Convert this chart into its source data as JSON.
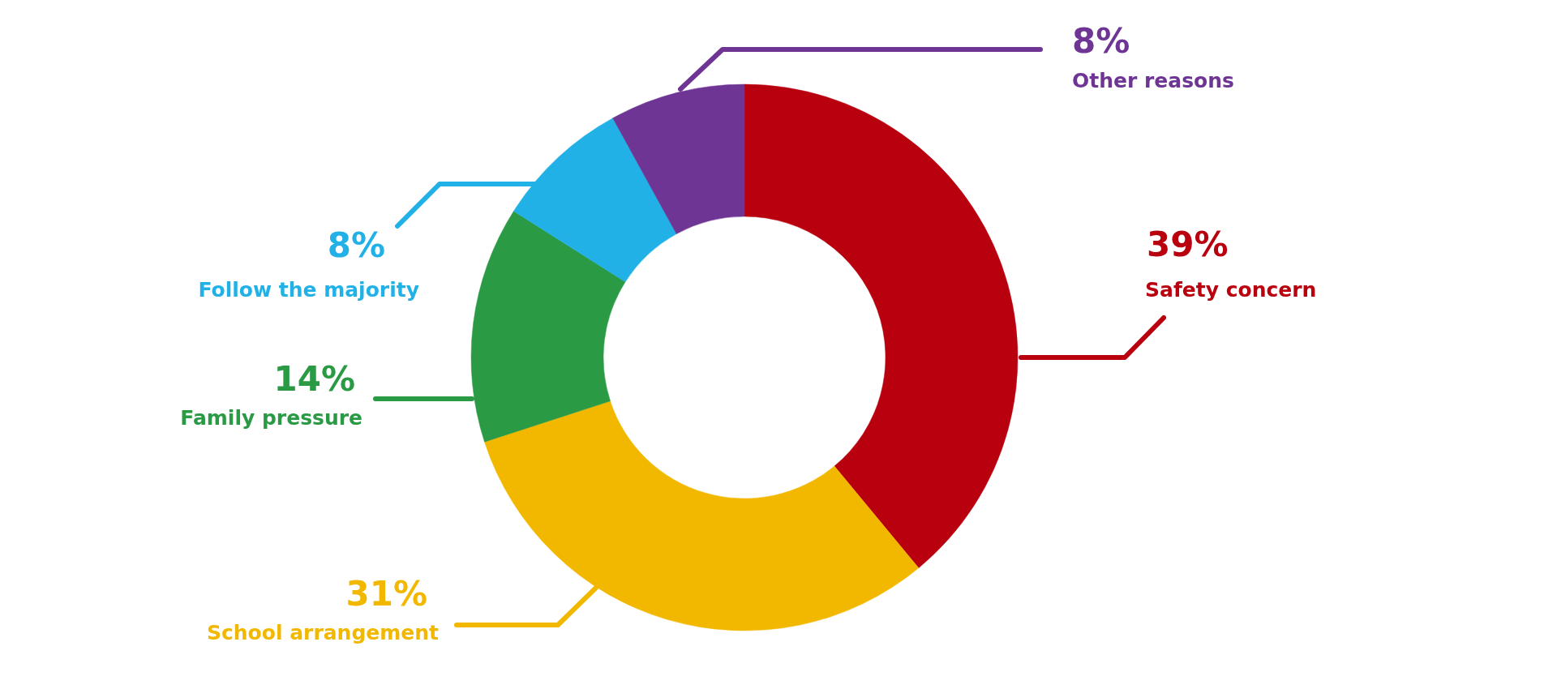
{
  "chart_data": {
    "type": "donut",
    "categories": [
      "Safety concern",
      "School arrangement",
      "Family pressure",
      "Follow the majority",
      "Other reasons"
    ],
    "values": [
      39,
      31,
      14,
      8,
      8
    ],
    "colors": [
      "#b9000f",
      "#f2b800",
      "#2a9a45",
      "#21b1e6",
      "#6e3595"
    ],
    "value_labels": [
      "39%",
      "31%",
      "14%",
      "8%",
      "8%"
    ]
  }
}
